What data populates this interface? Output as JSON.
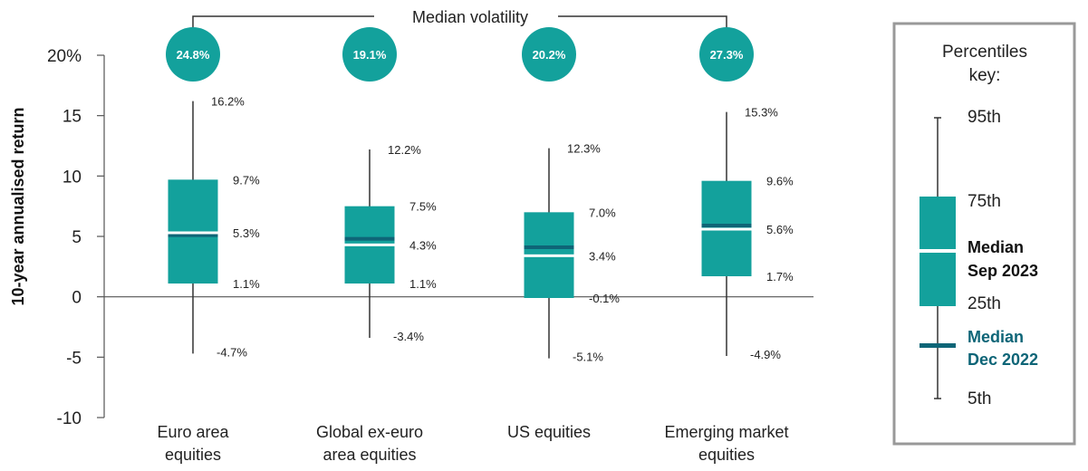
{
  "colors": {
    "box": "#13a19c",
    "median_sep_2023": "#ffffff",
    "median_dec_2022": "#0e6577",
    "volatility_circle": "#13a19c",
    "whisker": "#333333",
    "key_border": "#999999"
  },
  "volatility_header": "Median volatility",
  "chart_data": {
    "type": "box",
    "ylabel": "10-year annualised return",
    "ylim": [
      -10,
      20
    ],
    "yticks": [
      {
        "value": 20,
        "label": "20%"
      },
      {
        "value": 15,
        "label": "15"
      },
      {
        "value": 10,
        "label": "10"
      },
      {
        "value": 5,
        "label": "5"
      },
      {
        "value": 0,
        "label": "0"
      },
      {
        "value": -5,
        "label": "-5"
      },
      {
        "value": -10,
        "label": "-10"
      }
    ],
    "categories": [
      {
        "lines": [
          "Euro area",
          "equities"
        ],
        "volatility": "24.8%",
        "p95": 16.2,
        "p75": 9.7,
        "median": 5.3,
        "p25": 1.1,
        "p5": -4.7,
        "median_dec_2022": 5.1,
        "labels": {
          "p95": "16.2%",
          "p75": "9.7%",
          "median": "5.3%",
          "p25": "1.1%",
          "p5": "-4.7%"
        }
      },
      {
        "lines": [
          "Global ex-euro",
          "area equities"
        ],
        "volatility": "19.1%",
        "p95": 12.2,
        "p75": 7.5,
        "median": 4.3,
        "p25": 1.1,
        "p5": -3.4,
        "median_dec_2022": 4.8,
        "labels": {
          "p95": "12.2%",
          "p75": "7.5%",
          "median": "4.3%",
          "p25": "1.1%",
          "p5": "-3.4%"
        }
      },
      {
        "lines": [
          "US equities"
        ],
        "volatility": "20.2%",
        "p95": 12.3,
        "p75": 7.0,
        "median": 3.4,
        "p25": -0.1,
        "p5": -5.1,
        "median_dec_2022": 4.1,
        "labels": {
          "p95": "12.3%",
          "p75": "7.0%",
          "median": "3.4%",
          "p25": "-0.1%",
          "p5": "-5.1%"
        }
      },
      {
        "lines": [
          "Emerging market",
          "equities"
        ],
        "volatility": "27.3%",
        "p95": 15.3,
        "p75": 9.6,
        "median": 5.6,
        "p25": 1.7,
        "p5": -4.9,
        "median_dec_2022": 5.9,
        "labels": {
          "p95": "15.3%",
          "p75": "9.6%",
          "median": "5.6%",
          "p25": "1.7%",
          "p5": "-4.9%"
        }
      }
    ]
  },
  "key": {
    "title_lines": [
      "Percentiles",
      "key:"
    ],
    "p95": "95th",
    "p75": "75th",
    "median_sep_lines": [
      "Median",
      "Sep 2023"
    ],
    "p25": "25th",
    "median_dec_lines": [
      "Median",
      "Dec 2022"
    ],
    "p5": "5th"
  }
}
